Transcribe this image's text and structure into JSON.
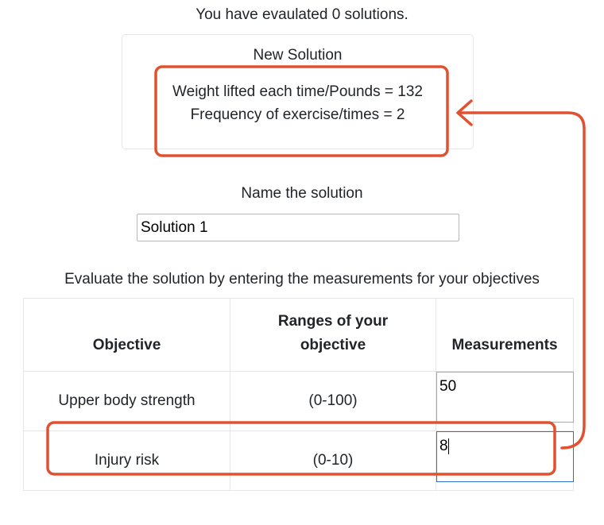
{
  "status": {
    "text": "You have evaulated 0 solutions."
  },
  "new_solution": {
    "title": "New Solution",
    "lines": [
      "Weight lifted each time/Pounds = 132",
      "Frequency of exercise/times = 2"
    ]
  },
  "name_solution": {
    "label": "Name the solution",
    "value": "Solution 1"
  },
  "evaluate": {
    "instruction": "Evaluate the solution by entering the measurements for your objectives"
  },
  "table": {
    "headers": {
      "objective": "Objective",
      "ranges_line1": "Ranges of your",
      "ranges_line2": "objective",
      "measurements": "Measurements"
    },
    "rows": [
      {
        "objective": "Upper body strength",
        "range": "(0-100)",
        "measurement": "50"
      },
      {
        "objective": "Injury risk",
        "range": "(0-10)",
        "measurement": "8"
      }
    ]
  },
  "annotation": {
    "color": "#e2512f",
    "arrow_icon": "arrow-left-icon"
  }
}
